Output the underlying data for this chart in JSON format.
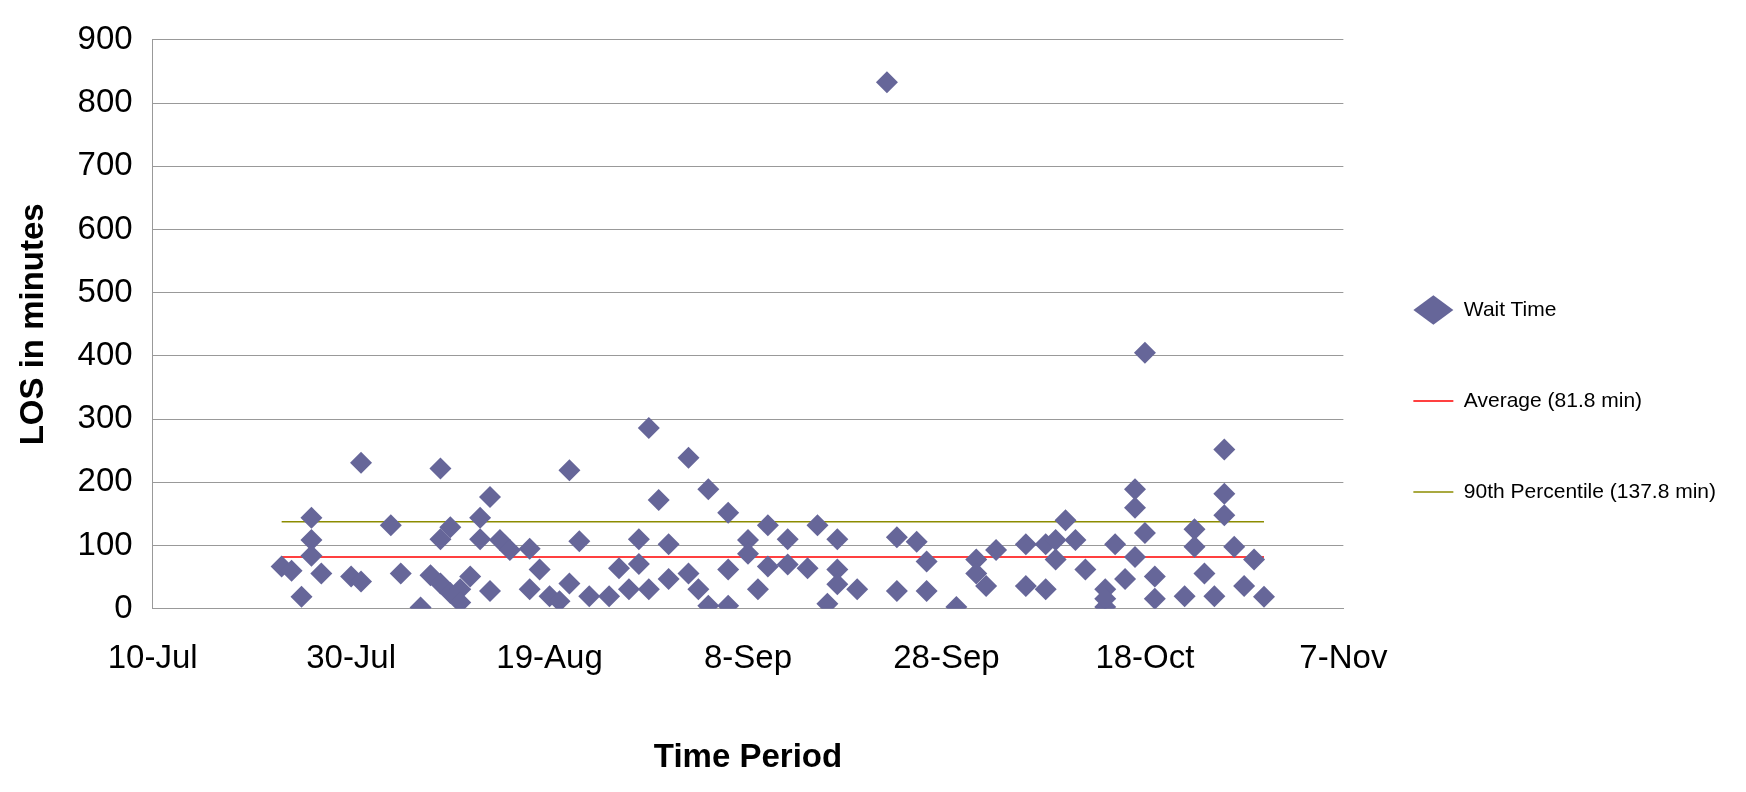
{
  "chart_data": {
    "type": "scatter",
    "xlabel": "Time Period",
    "ylabel": "LOS in minutes",
    "xlim": [
      "--07-10",
      "--11-07"
    ],
    "xticks": [
      {
        "value": "--07-10",
        "label": "10-Jul"
      },
      {
        "value": "--07-30",
        "label": "30-Jul"
      },
      {
        "value": "--08-19",
        "label": "19-Aug"
      },
      {
        "value": "--09-08",
        "label": "8-Sep"
      },
      {
        "value": "--09-28",
        "label": "28-Sep"
      },
      {
        "value": "--10-18",
        "label": "18-Oct"
      },
      {
        "value": "--11-07",
        "label": "7-Nov"
      }
    ],
    "ylim": [
      0,
      900
    ],
    "yticks": [
      0,
      100,
      200,
      300,
      400,
      500,
      600,
      700,
      800,
      900
    ],
    "grid": "y",
    "legend": "right",
    "marker": "diamond",
    "series": [
      {
        "name": "Wait Time",
        "color": "#666699",
        "x": [
          "--07-23",
          "--07-24",
          "--07-25",
          "--07-26",
          "--07-26",
          "--07-26",
          "--07-27",
          "--07-30",
          "--07-31",
          "--07-31",
          "--08-03",
          "--08-04",
          "--08-06",
          "--08-07",
          "--08-08",
          "--08-08",
          "--08-08",
          "--08-09",
          "--08-09",
          "--08-10",
          "--08-10",
          "--08-11",
          "--08-12",
          "--08-12",
          "--08-13",
          "--08-13",
          "--08-14",
          "--08-15",
          "--08-17",
          "--08-17",
          "--08-18",
          "--08-19",
          "--08-20",
          "--08-21",
          "--08-21",
          "--08-22",
          "--08-23",
          "--08-25",
          "--08-26",
          "--08-27",
          "--08-28",
          "--08-28",
          "--08-29",
          "--08-29",
          "--08-30",
          "--08-31",
          "--08-31",
          "--09-02",
          "--09-02",
          "--09-03",
          "--09-04",
          "--09-04",
          "--09-06",
          "--09-06",
          "--09-06",
          "--09-08",
          "--09-08",
          "--09-09",
          "--09-10",
          "--09-10",
          "--09-12",
          "--09-12",
          "--09-14",
          "--09-15",
          "--09-16",
          "--09-17",
          "--09-17",
          "--09-17",
          "--09-19",
          "--09-22",
          "--09-23",
          "--09-23",
          "--09-25",
          "--09-26",
          "--09-26",
          "--09-29",
          "--10-01",
          "--10-01",
          "--10-02",
          "--10-03",
          "--10-06",
          "--10-06",
          "--10-08",
          "--10-08",
          "--10-09",
          "--10-09",
          "--10-10",
          "--10-11",
          "--10-12",
          "--10-14",
          "--10-15",
          "--10-14",
          "--10-14",
          "--10-16",
          "--10-17",
          "--10-17",
          "--10-17",
          "--10-18",
          "--10-18",
          "--10-19",
          "--10-19",
          "--10-22",
          "--10-23",
          "--10-23",
          "--10-24",
          "--10-25",
          "--10-26",
          "--10-26",
          "--10-26",
          "--10-27",
          "--10-28",
          "--10-29",
          "--10-30"
        ],
        "values": [
          67,
          60,
          19,
          144,
          109,
          84,
          56,
          51,
          231,
          43,
          132,
          56,
          2,
          53,
          222,
          110,
          40,
          129,
          25,
          31,
          10,
          51,
          144,
          110,
          177,
          28,
          109,
          93,
          95,
          31,
          62,
          20,
          12,
          219,
          40,
          107,
          20,
          20,
          64,
          31,
          110,
          71,
          286,
          31,
          172,
          102,
          47,
          239,
          56,
          31,
          189,
          5,
          152,
          62,
          5,
          109,
          87,
          31,
          132,
          67,
          110,
          70,
          64,
          132,
          8,
          110,
          62,
          39,
          31,
          833,
          113,
          28,
          106,
          75,
          28,
          3,
          78,
          56,
          36,
          93,
          102,
          36,
          102,
          31,
          109,
          78,
          140,
          109,
          62,
          31,
          102,
          3,
          16,
          47,
          189,
          160,
          82,
          405,
          120,
          16,
          51,
          20,
          126,
          98,
          56,
          20,
          252,
          182,
          148,
          98,
          36,
          78,
          19
        ]
      }
    ],
    "ref_lines": [
      {
        "axis": "y",
        "value": 81.8,
        "label": "Average (81.8 min)",
        "color": "#ff0000"
      },
      {
        "axis": "y",
        "value": 137.8,
        "label": "90th Percentile (137.8 min)",
        "color": "#8c8c00"
      }
    ]
  }
}
